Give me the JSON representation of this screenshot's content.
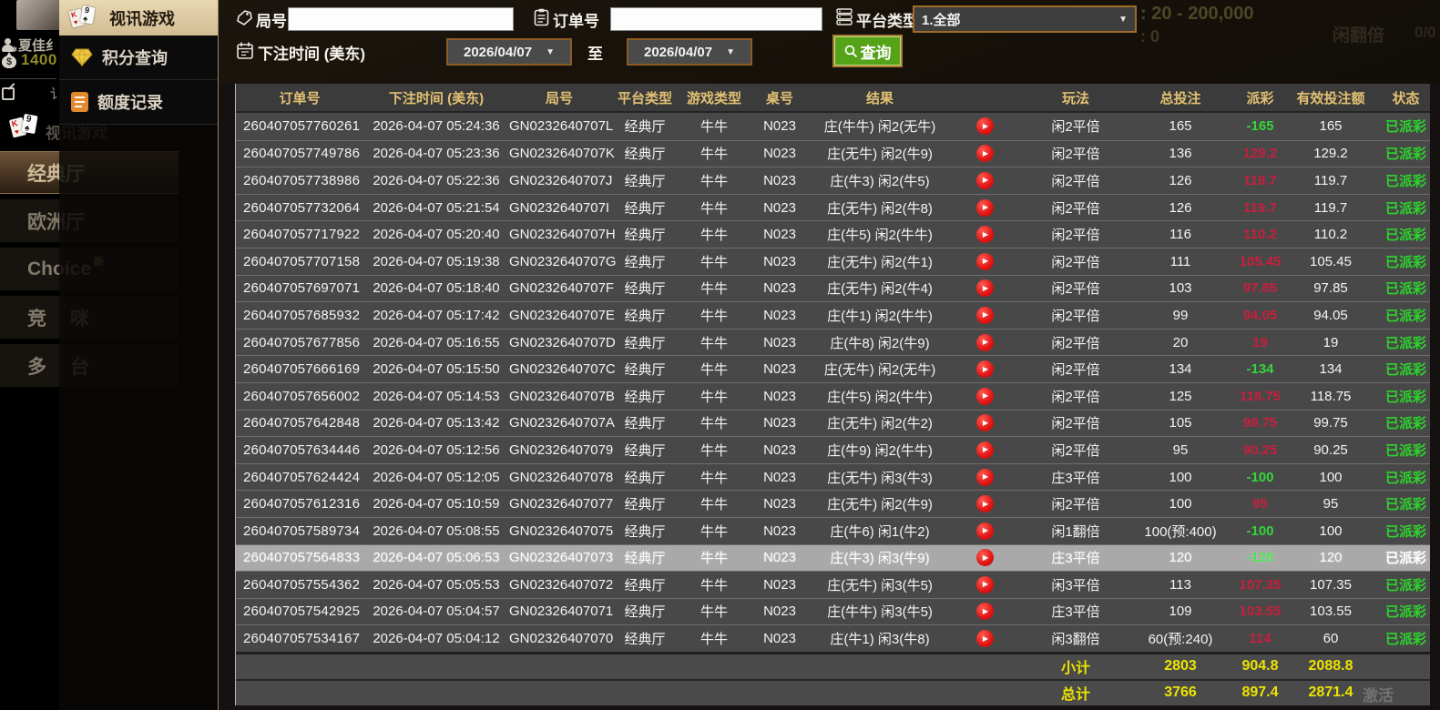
{
  "user_panel": {
    "name": "夏佳纟",
    "balance": "1400",
    "note": "讠"
  },
  "flyout_menu": {
    "items": [
      {
        "label": "视讯游戏",
        "icon": "cards-icon",
        "active": true
      },
      {
        "label": "积分查询",
        "icon": "diamond-icon",
        "active": false
      },
      {
        "label": "额度记录",
        "icon": "document-icon",
        "active": false
      }
    ]
  },
  "sidebar_menu": {
    "ghost_item": "视讯游戏",
    "items": [
      {
        "label": "经典厅",
        "active": true,
        "spaced": false,
        "badge": ""
      },
      {
        "label": "欧洲厅",
        "active": false,
        "spaced": false,
        "badge": ""
      },
      {
        "label": "Choice",
        "active": false,
        "spaced": false,
        "badge": "新"
      },
      {
        "label": "竞咪",
        "active": false,
        "spaced": true,
        "badge": ""
      },
      {
        "label": "多台",
        "active": false,
        "spaced": true,
        "badge": ""
      }
    ]
  },
  "filter_bar": {
    "round_label": "局号",
    "round_value": "",
    "order_label": "订单号",
    "order_value": "",
    "platform_label": "平台类型",
    "platform_value": "1.全部",
    "bet_time_label": "下注时间 (美东)",
    "date_from": "2026/04/07",
    "to_label": "至",
    "date_to": "2026/04/07",
    "search_label": "查询"
  },
  "ghost_texts": {
    "limit": ": 20 - 200,000",
    "total": ": 0",
    "side1": "闲翻倍",
    "side2": "0/0",
    "watermark": "激活"
  },
  "table": {
    "headers": [
      "订单号",
      "下注时间 (美东)",
      "局号",
      "平台类型",
      "游戏类型",
      "桌号",
      "结果",
      "",
      "玩法",
      "总投注",
      "派彩",
      "有效投注额",
      "状态"
    ],
    "selected_row_index": 16,
    "rows": [
      {
        "order": "260407057760261",
        "time": "2026-04-07 05:24:36",
        "round": "GN0232640707L",
        "platform": "经典厅",
        "game": "牛牛",
        "table_no": "N023",
        "result": "庄(牛牛) 闲2(无牛)",
        "playtype": "闲2平倍",
        "total": "165",
        "payout": "-165",
        "valid": "165",
        "status": "已派彩"
      },
      {
        "order": "260407057749786",
        "time": "2026-04-07 05:23:36",
        "round": "GN0232640707K",
        "platform": "经典厅",
        "game": "牛牛",
        "table_no": "N023",
        "result": "庄(无牛) 闲2(牛9)",
        "playtype": "闲2平倍",
        "total": "136",
        "payout": "129.2",
        "valid": "129.2",
        "status": "已派彩"
      },
      {
        "order": "260407057738986",
        "time": "2026-04-07 05:22:36",
        "round": "GN0232640707J",
        "platform": "经典厅",
        "game": "牛牛",
        "table_no": "N023",
        "result": "庄(牛3) 闲2(牛5)",
        "playtype": "闲2平倍",
        "total": "126",
        "payout": "119.7",
        "valid": "119.7",
        "status": "已派彩"
      },
      {
        "order": "260407057732064",
        "time": "2026-04-07 05:21:54",
        "round": "GN0232640707I",
        "platform": "经典厅",
        "game": "牛牛",
        "table_no": "N023",
        "result": "庄(无牛) 闲2(牛8)",
        "playtype": "闲2平倍",
        "total": "126",
        "payout": "119.7",
        "valid": "119.7",
        "status": "已派彩"
      },
      {
        "order": "260407057717922",
        "time": "2026-04-07 05:20:40",
        "round": "GN0232640707H",
        "platform": "经典厅",
        "game": "牛牛",
        "table_no": "N023",
        "result": "庄(牛5) 闲2(牛牛)",
        "playtype": "闲2平倍",
        "total": "116",
        "payout": "110.2",
        "valid": "110.2",
        "status": "已派彩"
      },
      {
        "order": "260407057707158",
        "time": "2026-04-07 05:19:38",
        "round": "GN0232640707G",
        "platform": "经典厅",
        "game": "牛牛",
        "table_no": "N023",
        "result": "庄(无牛) 闲2(牛1)",
        "playtype": "闲2平倍",
        "total": "111",
        "payout": "105.45",
        "valid": "105.45",
        "status": "已派彩"
      },
      {
        "order": "260407057697071",
        "time": "2026-04-07 05:18:40",
        "round": "GN0232640707F",
        "platform": "经典厅",
        "game": "牛牛",
        "table_no": "N023",
        "result": "庄(无牛) 闲2(牛4)",
        "playtype": "闲2平倍",
        "total": "103",
        "payout": "97.85",
        "valid": "97.85",
        "status": "已派彩"
      },
      {
        "order": "260407057685932",
        "time": "2026-04-07 05:17:42",
        "round": "GN0232640707E",
        "platform": "经典厅",
        "game": "牛牛",
        "table_no": "N023",
        "result": "庄(牛1) 闲2(牛牛)",
        "playtype": "闲2平倍",
        "total": "99",
        "payout": "94.05",
        "valid": "94.05",
        "status": "已派彩"
      },
      {
        "order": "260407057677856",
        "time": "2026-04-07 05:16:55",
        "round": "GN0232640707D",
        "platform": "经典厅",
        "game": "牛牛",
        "table_no": "N023",
        "result": "庄(牛8) 闲2(牛9)",
        "playtype": "闲2平倍",
        "total": "20",
        "payout": "19",
        "valid": "19",
        "status": "已派彩"
      },
      {
        "order": "260407057666169",
        "time": "2026-04-07 05:15:50",
        "round": "GN0232640707C",
        "platform": "经典厅",
        "game": "牛牛",
        "table_no": "N023",
        "result": "庄(无牛) 闲2(无牛)",
        "playtype": "闲2平倍",
        "total": "134",
        "payout": "-134",
        "valid": "134",
        "status": "已派彩"
      },
      {
        "order": "260407057656002",
        "time": "2026-04-07 05:14:53",
        "round": "GN0232640707B",
        "platform": "经典厅",
        "game": "牛牛",
        "table_no": "N023",
        "result": "庄(牛5) 闲2(牛牛)",
        "playtype": "闲2平倍",
        "total": "125",
        "payout": "118.75",
        "valid": "118.75",
        "status": "已派彩"
      },
      {
        "order": "260407057642848",
        "time": "2026-04-07 05:13:42",
        "round": "GN0232640707A",
        "platform": "经典厅",
        "game": "牛牛",
        "table_no": "N023",
        "result": "庄(无牛) 闲2(牛2)",
        "playtype": "闲2平倍",
        "total": "105",
        "payout": "99.75",
        "valid": "99.75",
        "status": "已派彩"
      },
      {
        "order": "260407057634446",
        "time": "2026-04-07 05:12:56",
        "round": "GN02326407079",
        "platform": "经典厅",
        "game": "牛牛",
        "table_no": "N023",
        "result": "庄(牛9) 闲2(牛牛)",
        "playtype": "闲2平倍",
        "total": "95",
        "payout": "90.25",
        "valid": "90.25",
        "status": "已派彩"
      },
      {
        "order": "260407057624424",
        "time": "2026-04-07 05:12:05",
        "round": "GN02326407078",
        "platform": "经典厅",
        "game": "牛牛",
        "table_no": "N023",
        "result": "庄(无牛) 闲3(牛3)",
        "playtype": "庄3平倍",
        "total": "100",
        "payout": "-100",
        "valid": "100",
        "status": "已派彩"
      },
      {
        "order": "260407057612316",
        "time": "2026-04-07 05:10:59",
        "round": "GN02326407077",
        "platform": "经典厅",
        "game": "牛牛",
        "table_no": "N023",
        "result": "庄(无牛) 闲2(牛9)",
        "playtype": "闲2平倍",
        "total": "100",
        "payout": "95",
        "valid": "95",
        "status": "已派彩"
      },
      {
        "order": "260407057589734",
        "time": "2026-04-07 05:08:55",
        "round": "GN02326407075",
        "platform": "经典厅",
        "game": "牛牛",
        "table_no": "N023",
        "result": "庄(牛6) 闲1(牛2)",
        "playtype": "闲1翻倍",
        "total": "100(预:400)",
        "payout": "-100",
        "valid": "100",
        "status": "已派彩"
      },
      {
        "order": "260407057564833",
        "time": "2026-04-07 05:06:53",
        "round": "GN02326407073",
        "platform": "经典厅",
        "game": "牛牛",
        "table_no": "N023",
        "result": "庄(牛3) 闲3(牛9)",
        "playtype": "庄3平倍",
        "total": "120",
        "payout": "-120",
        "valid": "120",
        "status": "已派彩"
      },
      {
        "order": "260407057554362",
        "time": "2026-04-07 05:05:53",
        "round": "GN02326407072",
        "platform": "经典厅",
        "game": "牛牛",
        "table_no": "N023",
        "result": "庄(无牛) 闲3(牛5)",
        "playtype": "闲3平倍",
        "total": "113",
        "payout": "107.35",
        "valid": "107.35",
        "status": "已派彩"
      },
      {
        "order": "260407057542925",
        "time": "2026-04-07 05:04:57",
        "round": "GN02326407071",
        "platform": "经典厅",
        "game": "牛牛",
        "table_no": "N023",
        "result": "庄(牛牛) 闲3(牛5)",
        "playtype": "庄3平倍",
        "total": "109",
        "payout": "103.55",
        "valid": "103.55",
        "status": "已派彩"
      },
      {
        "order": "260407057534167",
        "time": "2026-04-07 05:04:12",
        "round": "GN02326407070",
        "platform": "经典厅",
        "game": "牛牛",
        "table_no": "N023",
        "result": "庄(牛1) 闲3(牛8)",
        "playtype": "闲3翻倍",
        "total": "60(预:240)",
        "payout": "114",
        "valid": "60",
        "status": "已派彩"
      }
    ],
    "subtotal": {
      "label": "小计",
      "total": "2803",
      "payout": "904.8",
      "valid": "2088.8"
    },
    "grand_total": {
      "label": "总计",
      "total": "3766",
      "payout": "897.4",
      "valid": "2871.4"
    }
  },
  "colors": {
    "win_red": "#c71f3d",
    "lose_green": "#35d53a",
    "status_green": "#2cd42c",
    "summary_yellow": "#ece400",
    "header_gold": "#e3c173",
    "active_menu_tan": "#d8c49e",
    "search_green": "#55a318",
    "select_border_brown": "#a06b28",
    "selected_row_gray": "#a9a9a9"
  }
}
